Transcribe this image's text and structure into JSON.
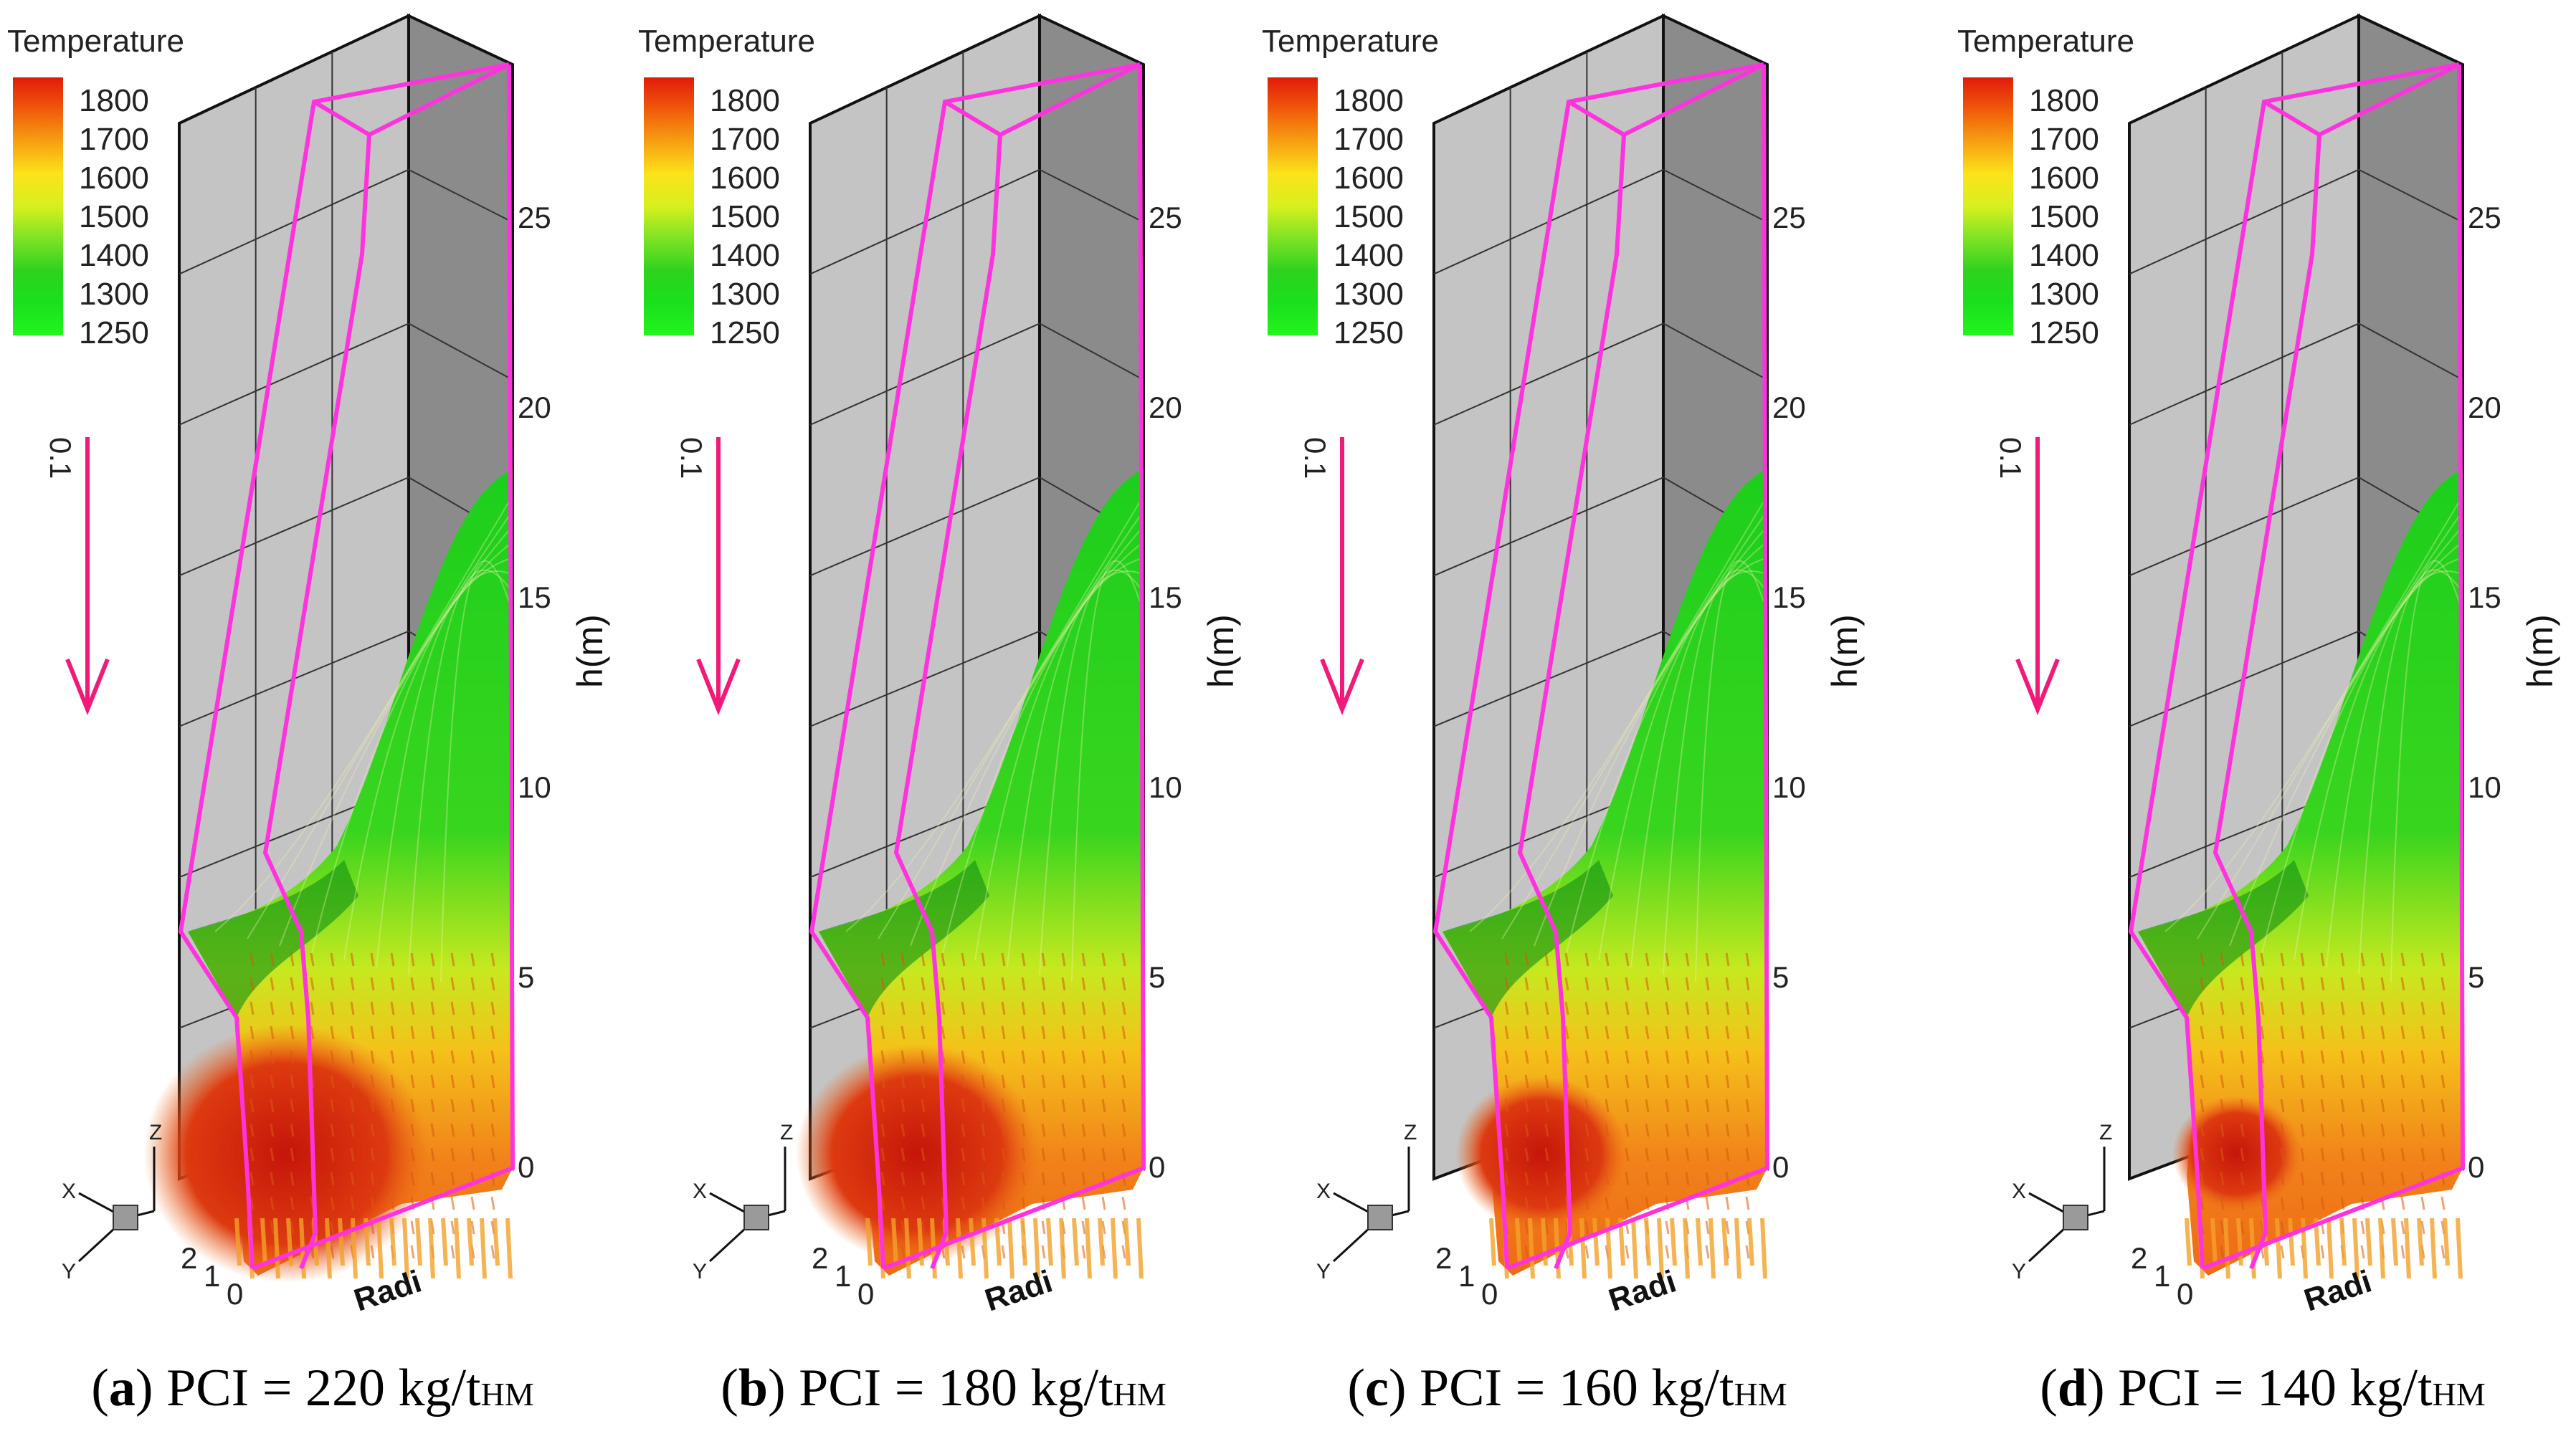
{
  "legend": {
    "title": "Temperature",
    "ticks": [
      "1800",
      "1700",
      "1600",
      "1500",
      "1400",
      "1300",
      "1250"
    ],
    "colors": [
      "#e01b0a",
      "#f05a0a",
      "#f7a012",
      "#fce31a",
      "#d6f01e",
      "#7ee324",
      "#2ed21e",
      "#19e01b",
      "#22f51e"
    ]
  },
  "vector_scale": {
    "label": "0.1",
    "color": "#f01a78"
  },
  "axes": {
    "h_label": "h(m)",
    "h_ticks": [
      "25",
      "20",
      "15",
      "10",
      "5",
      "0"
    ],
    "bottom_ticks": [
      "2",
      "1",
      "0"
    ],
    "radius_label_visible": "Radi",
    "triad": [
      "X",
      "Y",
      "Z"
    ]
  },
  "outline_color": "#ff33dd",
  "panels": [
    {
      "id": "a",
      "caption_letter": "a",
      "caption_text": "PCI = 220 kg/t",
      "caption_sub": "HM"
    },
    {
      "id": "b",
      "caption_letter": "b",
      "caption_text": "PCI = 180 kg/t",
      "caption_sub": "HM"
    },
    {
      "id": "c",
      "caption_letter": "c",
      "caption_text": "PCI = 160 kg/t",
      "caption_sub": "HM"
    },
    {
      "id": "d",
      "caption_letter": "d",
      "caption_text": "PCI = 140 kg/t",
      "caption_sub": "HM"
    }
  ]
}
